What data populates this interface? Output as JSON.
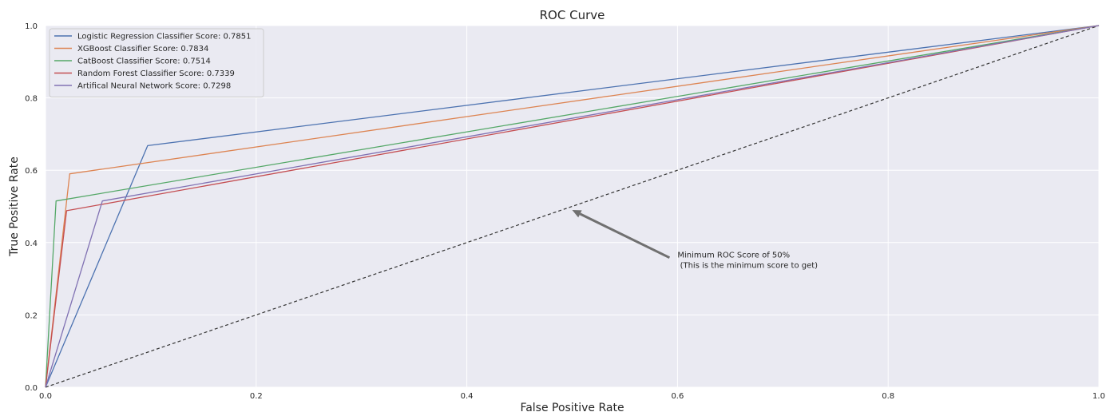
{
  "chart_data": {
    "type": "line",
    "title": "ROC Curve",
    "xlabel": "False Positive Rate",
    "ylabel": "True Positive Rate",
    "xlim": [
      0.0,
      1.0
    ],
    "ylim": [
      0.0,
      1.0
    ],
    "xticks": [
      0.0,
      0.2,
      0.4,
      0.6,
      0.8,
      1.0
    ],
    "yticks": [
      0.0,
      0.2,
      0.4,
      0.6,
      0.8,
      1.0
    ],
    "xtick_labels": [
      "0.0",
      "0.2",
      "0.4",
      "0.6",
      "0.8",
      "1.0"
    ],
    "ytick_labels": [
      "0.0",
      "0.2",
      "0.4",
      "0.6",
      "0.8",
      "1.0"
    ],
    "grid": true,
    "legend_position": "top-left",
    "background": "#eaeaf2",
    "series": [
      {
        "name": "Logistic Regression Classifier Score: 0.7851",
        "color": "#4c72b0",
        "x": [
          0.0,
          0.097,
          1.0
        ],
        "y": [
          0.0,
          0.668,
          1.0
        ]
      },
      {
        "name": "XGBoost Classifier Score: 0.7834",
        "color": "#dd8452",
        "x": [
          0.0,
          0.023,
          1.0
        ],
        "y": [
          0.0,
          0.59,
          1.0
        ]
      },
      {
        "name": "CatBoost Classifier Score: 0.7514",
        "color": "#55a868",
        "x": [
          0.0,
          0.01,
          1.0
        ],
        "y": [
          0.0,
          0.515,
          1.0
        ]
      },
      {
        "name": "Random Forest Classifier Score: 0.7339",
        "color": "#c44e52",
        "x": [
          0.0,
          0.02,
          1.0
        ],
        "y": [
          0.0,
          0.488,
          1.0
        ]
      },
      {
        "name": "Artifical Neural Network Score: 0.7298",
        "color": "#8172b3",
        "x": [
          0.0,
          0.054,
          1.0
        ],
        "y": [
          0.0,
          0.515,
          1.0
        ]
      }
    ],
    "baseline": {
      "x": [
        0.0,
        1.0
      ],
      "y": [
        0.0,
        1.0
      ],
      "color": "#333333",
      "style": "dashed"
    },
    "annotation": {
      "lines": [
        "Minimum ROC Score of 50%",
        " (This is the minimum score to get)"
      ],
      "arrow_target": [
        0.5,
        0.49
      ],
      "text_anchor": [
        0.6,
        0.345
      ],
      "arrow_color": "#707070"
    }
  }
}
